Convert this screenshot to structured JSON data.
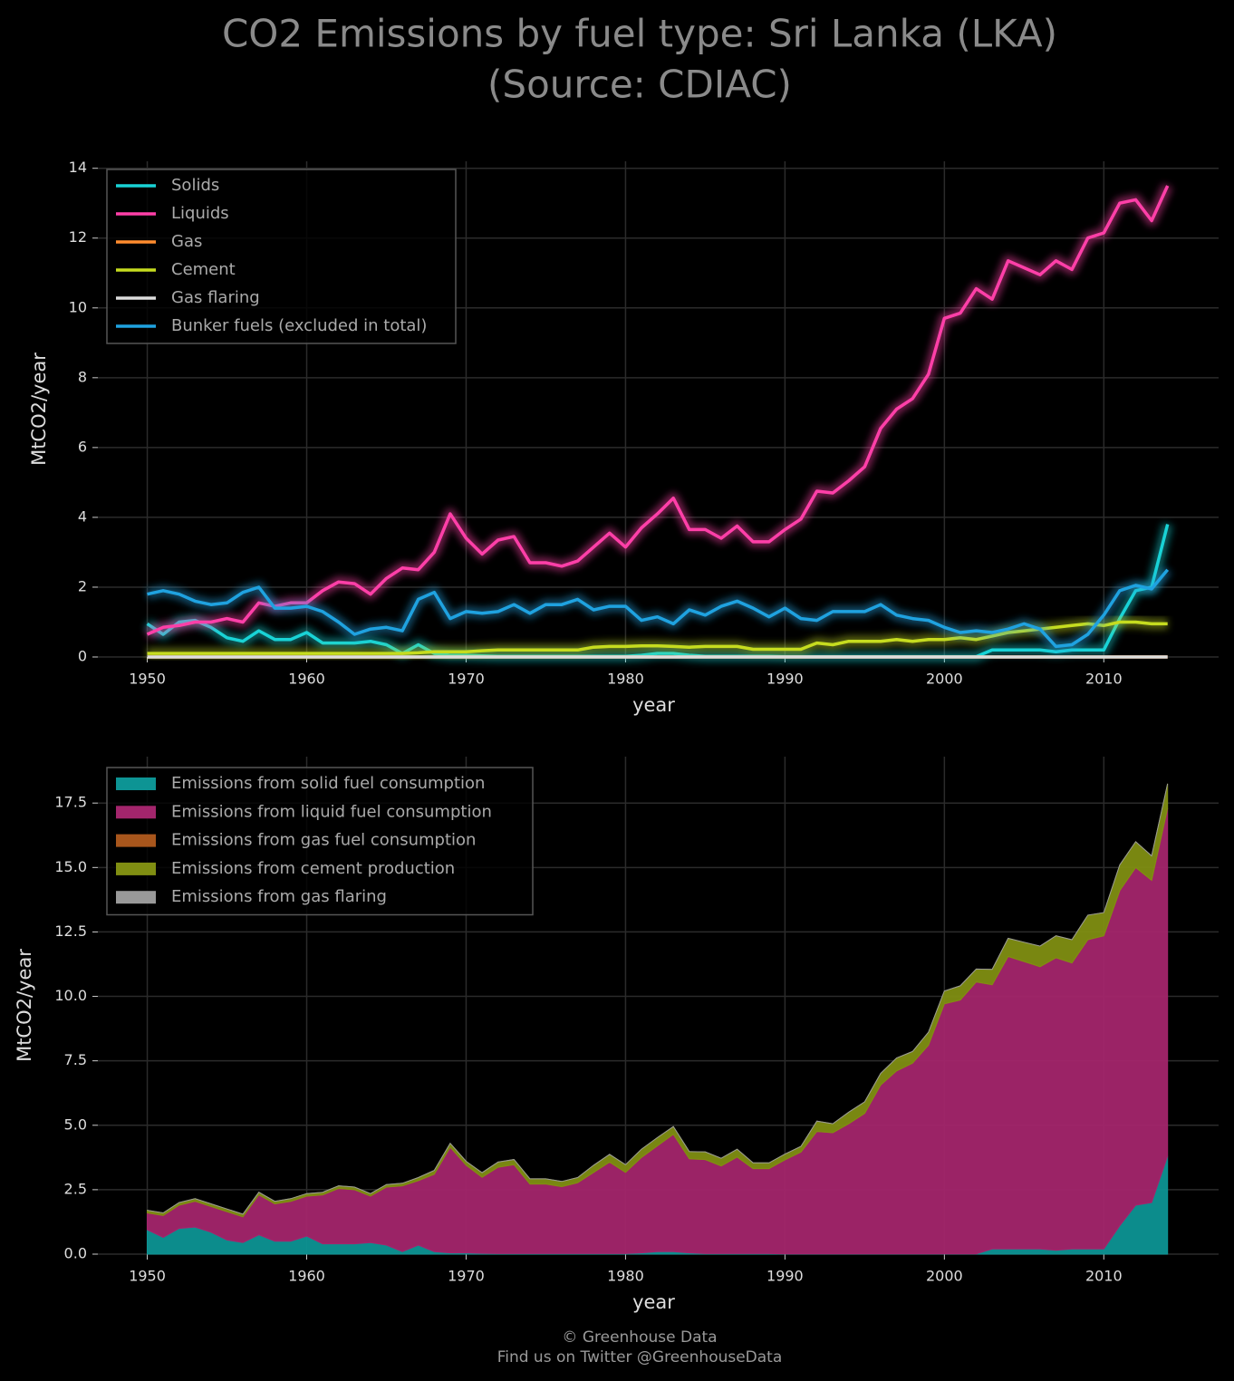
{
  "chart_data": [
    {
      "type": "line",
      "title": "CO2 Emissions by fuel type: Sri Lanka (LKA)",
      "subtitle": "(Source: CDIAC)",
      "x_label": "year",
      "y_label": "MtCO2/year",
      "x": [
        1950,
        1951,
        1952,
        1953,
        1954,
        1955,
        1956,
        1957,
        1958,
        1959,
        1960,
        1961,
        1962,
        1963,
        1964,
        1965,
        1966,
        1967,
        1968,
        1969,
        1970,
        1971,
        1972,
        1973,
        1974,
        1975,
        1976,
        1977,
        1978,
        1979,
        1980,
        1981,
        1982,
        1983,
        1984,
        1985,
        1986,
        1987,
        1988,
        1989,
        1990,
        1991,
        1992,
        1993,
        1994,
        1995,
        1996,
        1997,
        1998,
        1999,
        2000,
        2001,
        2002,
        2003,
        2004,
        2005,
        2006,
        2007,
        2008,
        2009,
        2010,
        2011,
        2012,
        2013,
        2014
      ],
      "xlim": [
        1946.9,
        2017.2
      ],
      "xticks": [
        1950,
        1960,
        1970,
        1980,
        1990,
        2000,
        2010
      ],
      "ylim": [
        0,
        14.2
      ],
      "yticks": [
        0,
        2,
        4,
        6,
        8,
        10,
        12,
        14
      ],
      "grid": true,
      "legend": "upper left",
      "series": [
        {
          "name": "Solids",
          "color": "#19d3d6",
          "values": [
            0.95,
            0.65,
            1.0,
            1.05,
            0.85,
            0.55,
            0.45,
            0.75,
            0.5,
            0.5,
            0.7,
            0.4,
            0.4,
            0.4,
            0.45,
            0.35,
            0.1,
            0.35,
            0.1,
            0.05,
            0.05,
            0.03,
            0.02,
            0.02,
            0.02,
            0.02,
            0.02,
            0.02,
            0.02,
            0.02,
            0.02,
            0.05,
            0.1,
            0.1,
            0.05,
            0.02,
            0.02,
            0.02,
            0.02,
            0.02,
            0.01,
            0.01,
            0.01,
            0.01,
            0.01,
            0.01,
            0.01,
            0.01,
            0.01,
            0.01,
            0.01,
            0.01,
            0.01,
            0.2,
            0.2,
            0.2,
            0.2,
            0.15,
            0.2,
            0.2,
            0.2,
            1.1,
            1.9,
            2.0,
            3.8
          ]
        },
        {
          "name": "Liquids",
          "color": "#ff3fa8",
          "values": [
            0.65,
            0.85,
            0.9,
            1.0,
            1.0,
            1.1,
            1.0,
            1.55,
            1.45,
            1.55,
            1.55,
            1.9,
            2.15,
            2.1,
            1.8,
            2.25,
            2.55,
            2.5,
            3.0,
            4.1,
            3.4,
            2.95,
            3.35,
            3.45,
            2.7,
            2.7,
            2.6,
            2.75,
            3.15,
            3.55,
            3.15,
            3.7,
            4.1,
            4.55,
            3.65,
            3.65,
            3.4,
            3.75,
            3.3,
            3.3,
            3.65,
            3.95,
            4.75,
            4.7,
            5.05,
            5.45,
            6.55,
            7.1,
            7.4,
            8.1,
            9.7,
            9.85,
            10.55,
            10.25,
            11.35,
            11.15,
            10.95,
            11.35,
            11.1,
            12.0,
            12.15,
            13.0,
            13.1,
            12.5,
            13.5
          ]
        },
        {
          "name": "Gas",
          "color": "#ff8c2e",
          "values": [
            0,
            0,
            0,
            0,
            0,
            0,
            0,
            0,
            0,
            0,
            0,
            0,
            0,
            0,
            0,
            0,
            0,
            0,
            0,
            0,
            0,
            0,
            0,
            0,
            0,
            0,
            0,
            0,
            0,
            0,
            0,
            0,
            0,
            0,
            0,
            0,
            0,
            0,
            0,
            0,
            0,
            0,
            0,
            0,
            0,
            0,
            0,
            0,
            0,
            0,
            0,
            0,
            0,
            0,
            0,
            0,
            0,
            0,
            0,
            0,
            0,
            0,
            0,
            0,
            0
          ]
        },
        {
          "name": "Cement",
          "color": "#c6dc1f",
          "values": [
            0.1,
            0.1,
            0.1,
            0.1,
            0.1,
            0.1,
            0.1,
            0.1,
            0.1,
            0.1,
            0.1,
            0.1,
            0.1,
            0.1,
            0.1,
            0.1,
            0.1,
            0.12,
            0.15,
            0.15,
            0.15,
            0.18,
            0.2,
            0.2,
            0.2,
            0.2,
            0.2,
            0.2,
            0.28,
            0.3,
            0.3,
            0.32,
            0.32,
            0.3,
            0.28,
            0.3,
            0.3,
            0.3,
            0.22,
            0.22,
            0.22,
            0.22,
            0.4,
            0.35,
            0.45,
            0.45,
            0.45,
            0.5,
            0.45,
            0.5,
            0.5,
            0.55,
            0.5,
            0.6,
            0.7,
            0.75,
            0.8,
            0.85,
            0.9,
            0.95,
            0.9,
            1.0,
            1.0,
            0.95,
            0.95
          ]
        },
        {
          "name": "Gas flaring",
          "color": "#dddddd",
          "values": [
            0,
            0,
            0,
            0,
            0,
            0,
            0,
            0,
            0,
            0,
            0,
            0,
            0,
            0,
            0,
            0,
            0,
            0,
            0,
            0,
            0,
            0,
            0,
            0,
            0,
            0,
            0,
            0,
            0,
            0,
            0,
            0,
            0,
            0,
            0,
            0,
            0,
            0,
            0,
            0,
            0,
            0,
            0,
            0,
            0,
            0,
            0,
            0,
            0,
            0,
            0,
            0,
            0,
            0,
            0,
            0,
            0,
            0,
            0,
            0,
            0,
            0,
            0,
            0,
            0
          ]
        },
        {
          "name": "Bunker fuels (excluded in total)",
          "color": "#1fa2e0",
          "values": [
            1.8,
            1.9,
            1.8,
            1.6,
            1.5,
            1.55,
            1.85,
            2.0,
            1.4,
            1.4,
            1.45,
            1.3,
            1.0,
            0.65,
            0.8,
            0.85,
            0.75,
            1.65,
            1.85,
            1.1,
            1.3,
            1.25,
            1.3,
            1.5,
            1.25,
            1.5,
            1.5,
            1.65,
            1.35,
            1.45,
            1.45,
            1.05,
            1.15,
            0.95,
            1.35,
            1.2,
            1.45,
            1.6,
            1.4,
            1.15,
            1.4,
            1.1,
            1.05,
            1.3,
            1.3,
            1.3,
            1.5,
            1.2,
            1.1,
            1.05,
            0.85,
            0.7,
            0.75,
            0.7,
            0.8,
            0.95,
            0.8,
            0.3,
            0.35,
            0.65,
            1.2,
            1.9,
            2.05,
            1.95,
            2.5
          ]
        }
      ]
    },
    {
      "type": "stacked_area",
      "x_label": "year",
      "y_label": "MtCO2/year",
      "x": [
        1950,
        1951,
        1952,
        1953,
        1954,
        1955,
        1956,
        1957,
        1958,
        1959,
        1960,
        1961,
        1962,
        1963,
        1964,
        1965,
        1966,
        1967,
        1968,
        1969,
        1970,
        1971,
        1972,
        1973,
        1974,
        1975,
        1976,
        1977,
        1978,
        1979,
        1980,
        1981,
        1982,
        1983,
        1984,
        1985,
        1986,
        1987,
        1988,
        1989,
        1990,
        1991,
        1992,
        1993,
        1994,
        1995,
        1996,
        1997,
        1998,
        1999,
        2000,
        2001,
        2002,
        2003,
        2004,
        2005,
        2006,
        2007,
        2008,
        2009,
        2010,
        2011,
        2012,
        2013,
        2014
      ],
      "xlim": [
        1946.9,
        2017.2
      ],
      "xticks": [
        1950,
        1960,
        1970,
        1980,
        1990,
        2000,
        2010
      ],
      "ylim": [
        0,
        19.3
      ],
      "yticks": [
        {
          "value": 0,
          "label": "0.0"
        },
        2.5,
        {
          "value": 5,
          "label": "5.0"
        },
        7.5,
        {
          "value": 10,
          "label": "10.0"
        },
        12.5,
        {
          "value": 15,
          "label": "15.0"
        },
        17.5
      ],
      "grid": true,
      "legend": "upper left",
      "series": [
        {
          "name": "Emissions from solid fuel consumption",
          "color": "#0d9494",
          "values": [
            0.95,
            0.65,
            1.0,
            1.05,
            0.85,
            0.55,
            0.45,
            0.75,
            0.5,
            0.5,
            0.7,
            0.4,
            0.4,
            0.4,
            0.45,
            0.35,
            0.1,
            0.35,
            0.1,
            0.05,
            0.05,
            0.03,
            0.02,
            0.02,
            0.02,
            0.02,
            0.02,
            0.02,
            0.02,
            0.02,
            0.02,
            0.05,
            0.1,
            0.1,
            0.05,
            0.02,
            0.02,
            0.02,
            0.02,
            0.02,
            0.01,
            0.01,
            0.01,
            0.01,
            0.01,
            0.01,
            0.01,
            0.01,
            0.01,
            0.01,
            0.01,
            0.01,
            0.01,
            0.2,
            0.2,
            0.2,
            0.2,
            0.15,
            0.2,
            0.2,
            0.2,
            1.1,
            1.9,
            2.0,
            3.8
          ]
        },
        {
          "name": "Emissions from liquid fuel consumption",
          "color": "#a3256c",
          "values": [
            0.65,
            0.85,
            0.9,
            1.0,
            1.0,
            1.1,
            1.0,
            1.55,
            1.45,
            1.55,
            1.55,
            1.9,
            2.15,
            2.1,
            1.8,
            2.25,
            2.55,
            2.5,
            3.0,
            4.1,
            3.4,
            2.95,
            3.35,
            3.45,
            2.7,
            2.7,
            2.6,
            2.75,
            3.15,
            3.55,
            3.15,
            3.7,
            4.1,
            4.55,
            3.65,
            3.65,
            3.4,
            3.75,
            3.3,
            3.3,
            3.65,
            3.95,
            4.75,
            4.7,
            5.05,
            5.45,
            6.55,
            7.1,
            7.4,
            8.1,
            9.7,
            9.85,
            10.55,
            10.25,
            11.35,
            11.15,
            10.95,
            11.35,
            11.1,
            12.0,
            12.15,
            13.0,
            13.1,
            12.5,
            13.5
          ]
        },
        {
          "name": "Emissions from gas fuel consumption",
          "color": "#a8561c",
          "values": [
            0,
            0,
            0,
            0,
            0,
            0,
            0,
            0,
            0,
            0,
            0,
            0,
            0,
            0,
            0,
            0,
            0,
            0,
            0,
            0,
            0,
            0,
            0,
            0,
            0,
            0,
            0,
            0,
            0,
            0,
            0,
            0,
            0,
            0,
            0,
            0,
            0,
            0,
            0,
            0,
            0,
            0,
            0,
            0,
            0,
            0,
            0,
            0,
            0,
            0,
            0,
            0,
            0,
            0,
            0,
            0,
            0,
            0,
            0,
            0,
            0,
            0,
            0,
            0,
            0
          ]
        },
        {
          "name": "Emissions from cement production",
          "color": "#808e12",
          "values": [
            0.1,
            0.1,
            0.1,
            0.1,
            0.1,
            0.1,
            0.1,
            0.1,
            0.1,
            0.1,
            0.1,
            0.1,
            0.1,
            0.1,
            0.1,
            0.1,
            0.1,
            0.12,
            0.15,
            0.15,
            0.15,
            0.18,
            0.2,
            0.2,
            0.2,
            0.2,
            0.2,
            0.2,
            0.28,
            0.3,
            0.3,
            0.32,
            0.32,
            0.3,
            0.28,
            0.3,
            0.3,
            0.3,
            0.22,
            0.22,
            0.22,
            0.22,
            0.4,
            0.35,
            0.45,
            0.45,
            0.45,
            0.5,
            0.45,
            0.5,
            0.5,
            0.55,
            0.5,
            0.6,
            0.7,
            0.75,
            0.8,
            0.85,
            0.9,
            0.95,
            0.9,
            1.0,
            1.0,
            0.95,
            0.95
          ]
        },
        {
          "name": "Emissions from gas flaring",
          "color": "#999999",
          "values": [
            0,
            0,
            0,
            0,
            0,
            0,
            0,
            0,
            0,
            0,
            0,
            0,
            0,
            0,
            0,
            0,
            0,
            0,
            0,
            0,
            0,
            0,
            0,
            0,
            0,
            0,
            0,
            0,
            0,
            0,
            0,
            0,
            0,
            0,
            0,
            0,
            0,
            0,
            0,
            0,
            0,
            0,
            0,
            0,
            0,
            0,
            0,
            0,
            0,
            0,
            0,
            0,
            0,
            0,
            0,
            0,
            0,
            0,
            0,
            0,
            0,
            0,
            0,
            0,
            0
          ]
        }
      ]
    }
  ],
  "footer": [
    "© Greenhouse Data",
    "Find us on Twitter @GreenhouseData"
  ]
}
